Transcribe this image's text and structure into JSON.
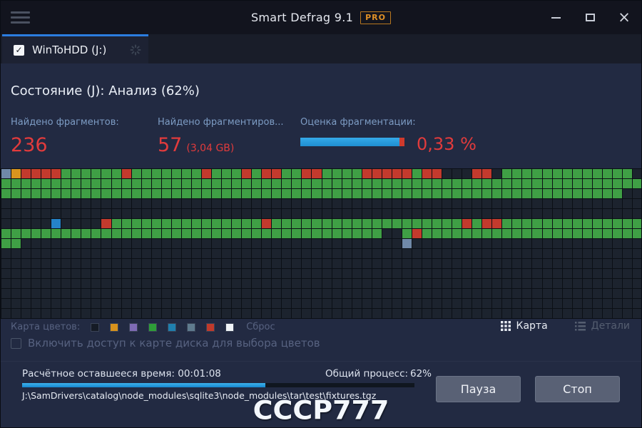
{
  "window": {
    "title": "Smart Defrag 9.1",
    "badge": "PRO"
  },
  "tab": {
    "label": "WinToHDD (J:)",
    "checked": true,
    "check_glyph": "✓"
  },
  "status": {
    "text": "Состояние (J): Анализ (62%)"
  },
  "stats": {
    "fragments": {
      "label": "Найдено фрагментов:",
      "value": "236"
    },
    "fragmented": {
      "label": "Найдено фрагментиров...",
      "value": "57",
      "sub": "(3,04 GB)"
    },
    "estimate": {
      "label": "Оценка фрагментации:",
      "value": "0,33 %",
      "bar_fill_percent": 95,
      "bar_tip_percent": 5
    }
  },
  "disk_map": {
    "cols": 64,
    "rows": 15,
    "cell_colors": {
      ".": "#1c232e",
      "g": "#3f9f45",
      "r": "#c33a2d",
      "c": "#2583c8",
      "s": "#7089a8",
      "o": "#d8951e"
    },
    "rows_pattern": [
      "sorrrrggggggrgggggggrgggrgrrggrrggggrrrrrgrr...rr.ggggggggggggg.",
      "gggggggggggggggggggggggggggggggggggggggggggggggggggggggggggggggg",
      "gggggggggggggggggggggggggggggggggggggggggggggggggggggggggggggg..",
      "................................................................",
      "................................................................",
      ".....c....rgggggggggggggggrgggggggggggggggggggrgrrgggggggggggggg",
      "gggggggggggggggggggggggggggggggggggggg..grgggggggggggggggggggggg",
      "gg......................................s.......................",
      "................................................................",
      "................................................................",
      "................................................................",
      "................................................................",
      "................................................................",
      "................................................................",
      "................................................................"
    ]
  },
  "legend": {
    "label": "Карта цветов:",
    "swatches": [
      "#151b26",
      "#d8921c",
      "#7e6bb5",
      "#2e9e38",
      "#1f7fae",
      "#5f7b8e",
      "#c03a2b",
      "#f0f4f8"
    ],
    "reset": "Сброс"
  },
  "view_toggle": {
    "map": "Карта",
    "details": "Детали"
  },
  "map_access": {
    "label": "Включить доступ к карте диска для выбора цветов",
    "checked": false
  },
  "footer": {
    "time_label": "Расчётное оставшееся время:",
    "time_value": "00:01:08",
    "progress_label": "Общий процесс:",
    "progress_value": "62%",
    "progress_percent": 62,
    "path": "J:\\SamDrivers\\catalog\\node_modules\\sqlite3\\node_modules\\tar\\test\\fixtures.tgz",
    "pause": "Пауза",
    "stop": "Стоп"
  },
  "watermark": "СССР777"
}
